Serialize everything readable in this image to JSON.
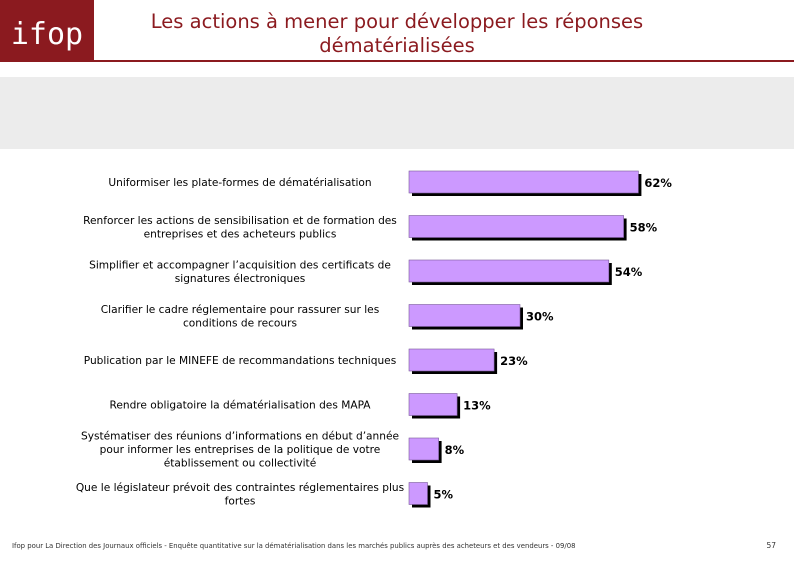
{
  "header": {
    "logo_text": "ifop",
    "title_line1": "Les actions à mener pour développer les réponses",
    "title_line2": "dématérialisées"
  },
  "colors": {
    "brand": "#8b1a1f",
    "bar_fill": "#cc99ff",
    "bar_shadow": "#000000",
    "band": "#ececec"
  },
  "chart_data": {
    "type": "bar",
    "orientation": "horizontal",
    "title": "",
    "categories": [
      [
        "Uniformiser les plate-formes de dématérialisation"
      ],
      [
        "Renforcer les actions de sensibilisation et de formation des",
        "entreprises et des acheteurs publics"
      ],
      [
        "Simplifier et accompagner l’acquisition des certificats de",
        "signatures électroniques"
      ],
      [
        "Clarifier le cadre réglementaire pour rassurer sur les",
        "conditions de recours"
      ],
      [
        "Publication par le MINEFE de recommandations techniques"
      ],
      [
        "Rendre obligatoire la dématérialisation des MAPA"
      ],
      [
        "Systématiser des réunions d’informations en début d’année",
        "pour informer les entreprises de la politique de votre",
        "établissement ou collectivité"
      ],
      [
        "Que le législateur prévoit des contraintes réglementaires plus",
        "fortes"
      ]
    ],
    "values": [
      62,
      58,
      54,
      30,
      23,
      13,
      8,
      5
    ],
    "value_labels": [
      "62%",
      "58%",
      "54%",
      "30%",
      "23%",
      "13%",
      "8%",
      "5%"
    ],
    "xlabel": "",
    "ylabel": "",
    "xlim": [
      0,
      100
    ],
    "grid": false,
    "legend": "none"
  },
  "footer": {
    "text": "Ifop pour La Direction des Journaux officiels - Enquête quantitative sur la dématérialisation dans les marchés publics auprès des acheteurs et des vendeurs - 09/08",
    "page_number": "57"
  }
}
